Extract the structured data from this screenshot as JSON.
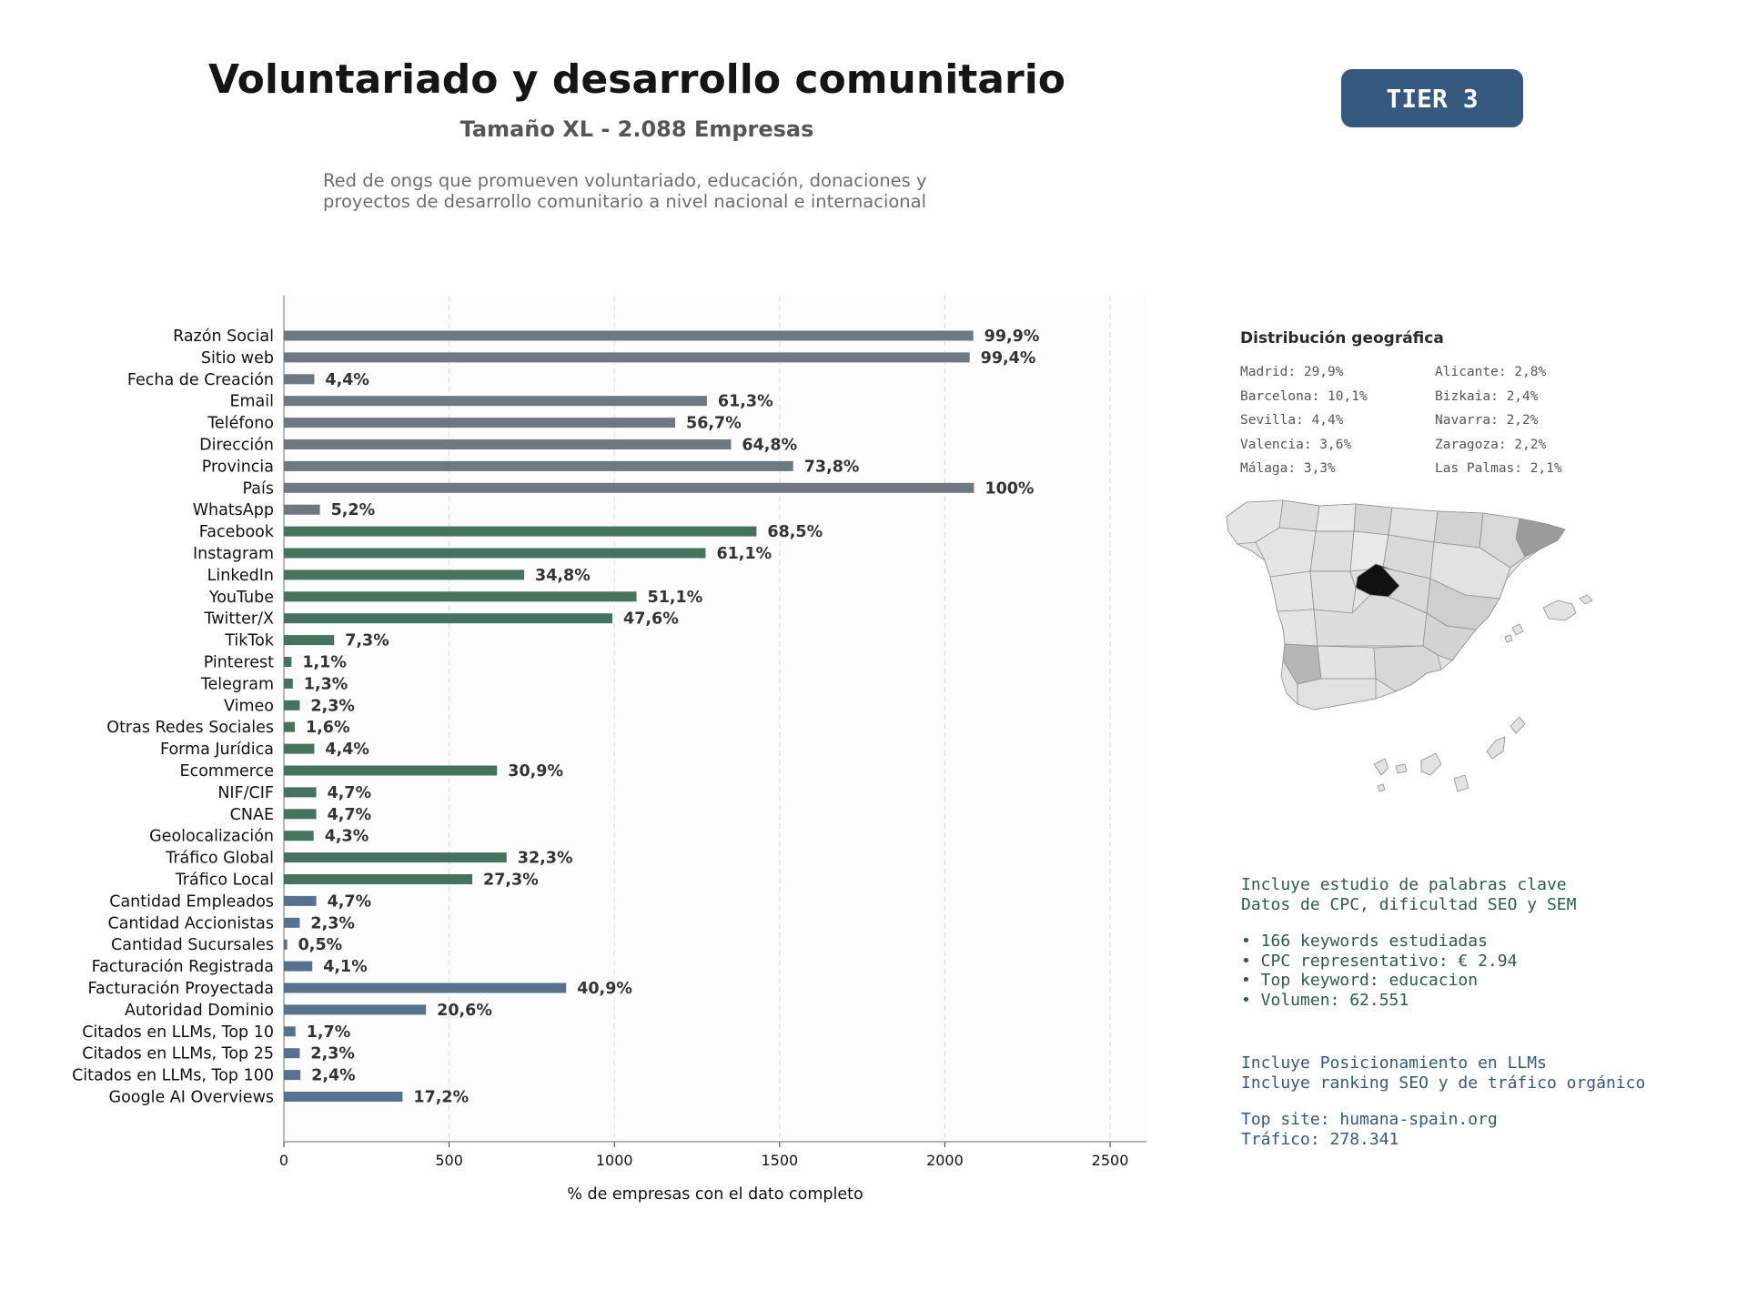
{
  "header": {
    "title": "Voluntariado y desarrollo comunitario",
    "subtitle": "Tamaño XL - 2.088 Empresas",
    "description_lines": [
      "Red de ongs que promueven voluntariado, educación, donaciones y",
      "proyectos de desarrollo comunitario a nivel nacional e internacional"
    ],
    "tier": "TIER 3"
  },
  "chart_data": {
    "type": "bar",
    "orientation": "horizontal",
    "xlabel": "% de empresas con el dato completo",
    "xlim": [
      0,
      2610
    ],
    "xticks": [
      0,
      500,
      1000,
      1500,
      2000,
      2500
    ],
    "grid": "vertical dashed",
    "categories": [
      "Razón Social",
      "Sitio web",
      "Fecha de Creación",
      "Email",
      "Teléfono",
      "Dirección",
      "Provincia",
      "País",
      "WhatsApp",
      "Facebook",
      "Instagram",
      "LinkedIn",
      "YouTube",
      "Twitter/X",
      "TikTok",
      "Pinterest",
      "Telegram",
      "Vimeo",
      "Otras Redes Sociales",
      "Forma Jurídica",
      "Ecommerce",
      "NIF/CIF",
      "CNAE",
      "Geolocalización",
      "Tráfico Global",
      "Tráfico Local",
      "Cantidad Empleados",
      "Cantidad Accionistas",
      "Cantidad Sucursales",
      "Facturación Registrada",
      "Facturación Proyectada",
      "Autoridad Dominio",
      "Citados en LLMs, Top 10",
      "Citados en LLMs, Top 25",
      "Citados en LLMs, Top 100",
      "Google AI Overviews"
    ],
    "values": [
      2086,
      2075,
      92,
      1280,
      1184,
      1353,
      1541,
      2088,
      109,
      1430,
      1276,
      727,
      1067,
      994,
      152,
      23,
      27,
      48,
      33,
      92,
      645,
      98,
      98,
      90,
      674,
      570,
      98,
      48,
      10,
      86,
      854,
      430,
      35,
      48,
      50,
      359
    ],
    "labels": [
      "99,9%",
      "99,4%",
      "4,4%",
      "61,3%",
      "56,7%",
      "64,8%",
      "73,8%",
      "100%",
      "5,2%",
      "68,5%",
      "61,1%",
      "34,8%",
      "51,1%",
      "47,6%",
      "7,3%",
      "1,1%",
      "1,3%",
      "2,3%",
      "1,6%",
      "4,4%",
      "30,9%",
      "4,7%",
      "4,7%",
      "4,3%",
      "32,3%",
      "27,3%",
      "4,7%",
      "2,3%",
      "0,5%",
      "4,1%",
      "40,9%",
      "20,6%",
      "1,7%",
      "2,3%",
      "2,4%",
      "17,2%"
    ],
    "bar_colors": [
      "#6f7780",
      "#6f7780",
      "#6f7780",
      "#6f7780",
      "#6f7780",
      "#6f7780",
      "#6f7780",
      "#6f7780",
      "#6f7780",
      "#46735f",
      "#46735f",
      "#46735f",
      "#46735f",
      "#46735f",
      "#46735f",
      "#46735f",
      "#46735f",
      "#46735f",
      "#46735f",
      "#46735f",
      "#46735f",
      "#46735f",
      "#46735f",
      "#46735f",
      "#46735f",
      "#46735f",
      "#56728f",
      "#56728f",
      "#56728f",
      "#56728f",
      "#56728f",
      "#56728f",
      "#56728f",
      "#56728f",
      "#56728f",
      "#56728f"
    ]
  },
  "geo": {
    "title": "Distribución geográfica",
    "items": [
      "Madrid: 29,9%",
      "Alicante: 2,8%",
      "Barcelona: 10,1%",
      "Bizkaia: 2,4%",
      "Sevilla: 4,4%",
      "Navarra: 2,2%",
      "Valencia: 3,6%",
      "Zaragoza: 2,2%",
      "Málaga: 3,3%",
      "Las Palmas: 2,1%"
    ]
  },
  "seo": {
    "line1": "Incluye estudio de palabras clave",
    "line2": "Datos de CPC, dificultad SEO y SEM",
    "bullet1": "• 166 keywords estudiadas",
    "bullet2": "• CPC representativo: € 2.94",
    "bullet3": "• Top keyword: educacion",
    "bullet4": "• Volumen: 62.551"
  },
  "llm": {
    "line1": "Incluye Posicionamiento en LLMs",
    "line2": "Incluye ranking SEO y de tráfico orgánico",
    "site": "Top site: humana-spain.org",
    "traffic": "Tráfico: 278.341"
  },
  "colors": {
    "base": "#6f7780",
    "social": "#46735f",
    "business": "#56728f",
    "tier": "#34587e",
    "seo_text": "#2e5c4c",
    "llm_text": "#34587e"
  }
}
